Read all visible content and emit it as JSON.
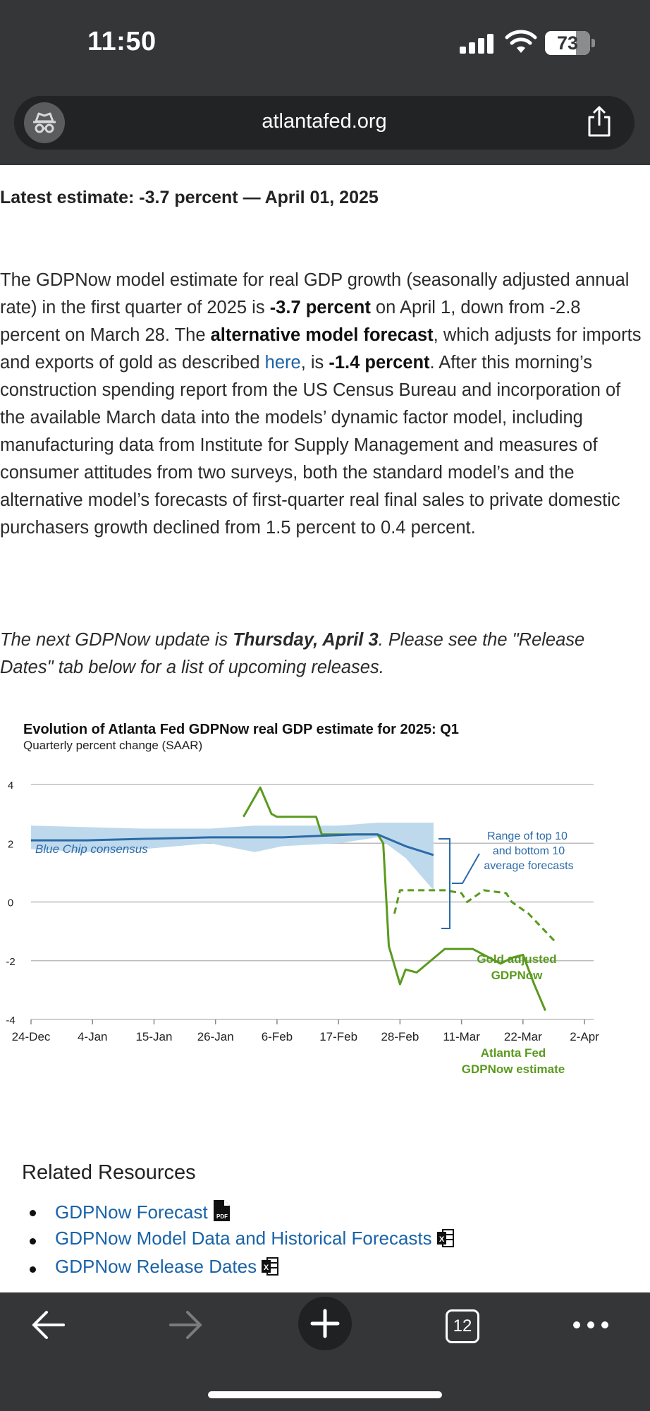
{
  "status_bar": {
    "time": "11:50",
    "battery": "73",
    "battery_level": 0.73
  },
  "browser": {
    "url": "atlantafed.org",
    "tab_count": "12"
  },
  "article": {
    "latest": "Latest estimate: -3.7 percent — April 01, 2025",
    "p1": "The GDPNow model estimate for real GDP growth (seasonally adjusted annual rate) in the first quarter of 2025 is ",
    "p1_b1": "-3.7 percent",
    "p1_2": " on April 1, down from -2.8 percent on March 28. The ",
    "p1_b2": "alternative model forecast",
    "p1_3": ", which adjusts for imports and exports of gold as described ",
    "p1_link": "here",
    "p1_4": ", is ",
    "p1_b3": "-1.4 percent",
    "p1_5": ". After this morning’s construction spending report from the US Census Bureau and incorporation of the available March data into the models’ dynamic factor model, including manufacturing data from Institute for Supply Management and measures of consumer attitudes from two surveys, both the standard model’s and the alternative model’s forecasts of first-quarter real final sales to private domestic purchasers growth declined from 1.5 percent to 0.4 percent.",
    "next_1": "The next GDPNow update is ",
    "next_b": "Thursday, April 3",
    "next_2": ". Please see the \"Release Dates\" tab below for a list of upcoming releases."
  },
  "chart_data": {
    "type": "line",
    "title": "Evolution of Atlanta Fed GDPNow real GDP estimate for 2025: Q1",
    "subtitle": "Quarterly percent change (SAAR)",
    "ylim": [
      -4,
      4
    ],
    "yticks": [
      "4",
      "2",
      "0",
      "-2",
      "-4"
    ],
    "x_ticks": [
      "24-Dec",
      "4-Jan",
      "15-Jan",
      "26-Jan",
      "6-Feb",
      "17-Feb",
      "28-Feb",
      "11-Mar",
      "22-Mar",
      "2-Apr"
    ],
    "annotations": {
      "blue_chip": "Blue Chip consensus",
      "range": [
        "Range of top 10",
        "and bottom 10",
        "average forecasts"
      ],
      "gold": [
        "Gold adjusted",
        "GDPNow"
      ],
      "atl": [
        "Atlanta Fed",
        "GDPNow estimate"
      ]
    },
    "colors": {
      "gdpnow": "#5a9a1e",
      "bluechip": "#2b6aa8",
      "band": "#bfd9ec",
      "grid": "#bdbdbd"
    },
    "series": [
      {
        "key": "gdpnow",
        "days": [
          38,
          41,
          43,
          44,
          46,
          51,
          52,
          56,
          62,
          63,
          64,
          66,
          67,
          69,
          74,
          78,
          79,
          84,
          86,
          88,
          90,
          92
        ],
        "values": [
          2.9,
          3.9,
          3.0,
          2.9,
          2.9,
          2.9,
          2.3,
          2.3,
          2.3,
          2.0,
          -1.5,
          -2.8,
          -2.3,
          -2.4,
          -1.6,
          -1.6,
          -1.6,
          -2.1,
          -1.9,
          -1.8,
          -2.8,
          -3.7
        ]
      },
      {
        "key": "gold",
        "days": [
          65,
          66,
          70,
          74,
          77,
          78,
          81,
          85,
          86,
          89,
          91,
          94
        ],
        "values": [
          -0.4,
          0.4,
          0.4,
          0.4,
          0.3,
          0.0,
          0.4,
          0.3,
          0.0,
          -0.4,
          -0.8,
          -1.4
        ],
        "dash": true
      },
      {
        "key": "bluechip",
        "days": [
          0,
          10,
          20,
          32,
          45,
          58,
          62,
          67,
          72
        ],
        "values": [
          2.1,
          2.1,
          2.15,
          2.2,
          2.2,
          2.3,
          2.3,
          1.9,
          1.6
        ]
      }
    ],
    "band": {
      "days": [
        0,
        10,
        20,
        32,
        40,
        45,
        55,
        62,
        67,
        72
      ],
      "upper": [
        2.6,
        2.55,
        2.5,
        2.5,
        2.6,
        2.6,
        2.6,
        2.7,
        2.7,
        2.7
      ],
      "lower": [
        1.8,
        1.7,
        1.8,
        2.0,
        1.7,
        1.9,
        2.0,
        2.2,
        1.5,
        0.4
      ]
    },
    "x_start": "2024-12-24"
  },
  "related": {
    "title": "Related Resources",
    "items": [
      "GDPNow Forecast",
      "GDPNow Model Data and Historical Forecasts",
      "GDPNow Release Dates"
    ]
  }
}
